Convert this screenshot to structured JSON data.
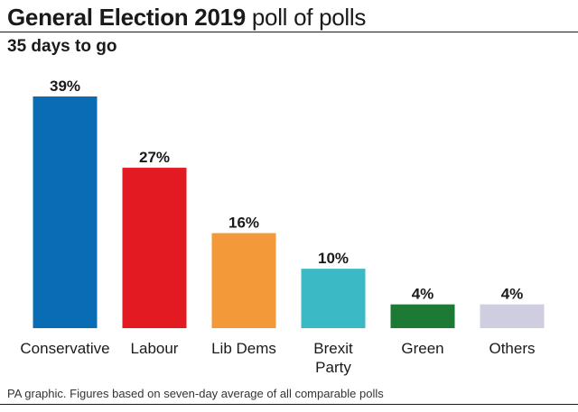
{
  "header": {
    "title_bold": "General Election 2019",
    "title_light": "poll of polls",
    "subtitle": "35 days to go"
  },
  "footer": {
    "source": "PA graphic. Figures based on seven-day average of all comparable polls"
  },
  "chart_data": {
    "type": "bar",
    "title": "General Election 2019 poll of polls",
    "subtitle": "35 days to go",
    "xlabel": "",
    "ylabel": "",
    "ylim": [
      0,
      39
    ],
    "grid": false,
    "legend": "none",
    "unit": "%",
    "categories": [
      "Conservative",
      "Labour",
      "Lib Dems",
      "Brexit Party",
      "Green",
      "Others"
    ],
    "category_lines": [
      [
        "Conservative"
      ],
      [
        "Labour"
      ],
      [
        "Lib Dems"
      ],
      [
        "Brexit",
        "Party"
      ],
      [
        "Green"
      ],
      [
        "Others"
      ]
    ],
    "values": [
      39,
      27,
      16,
      10,
      4,
      4
    ],
    "data_labels": [
      "39%",
      "27%",
      "16%",
      "10%",
      "4%",
      "4%"
    ],
    "colors": [
      "#0a6cb5",
      "#e31a22",
      "#f4993a",
      "#3bbac5",
      "#1d7a34",
      "#cfcde0"
    ]
  }
}
